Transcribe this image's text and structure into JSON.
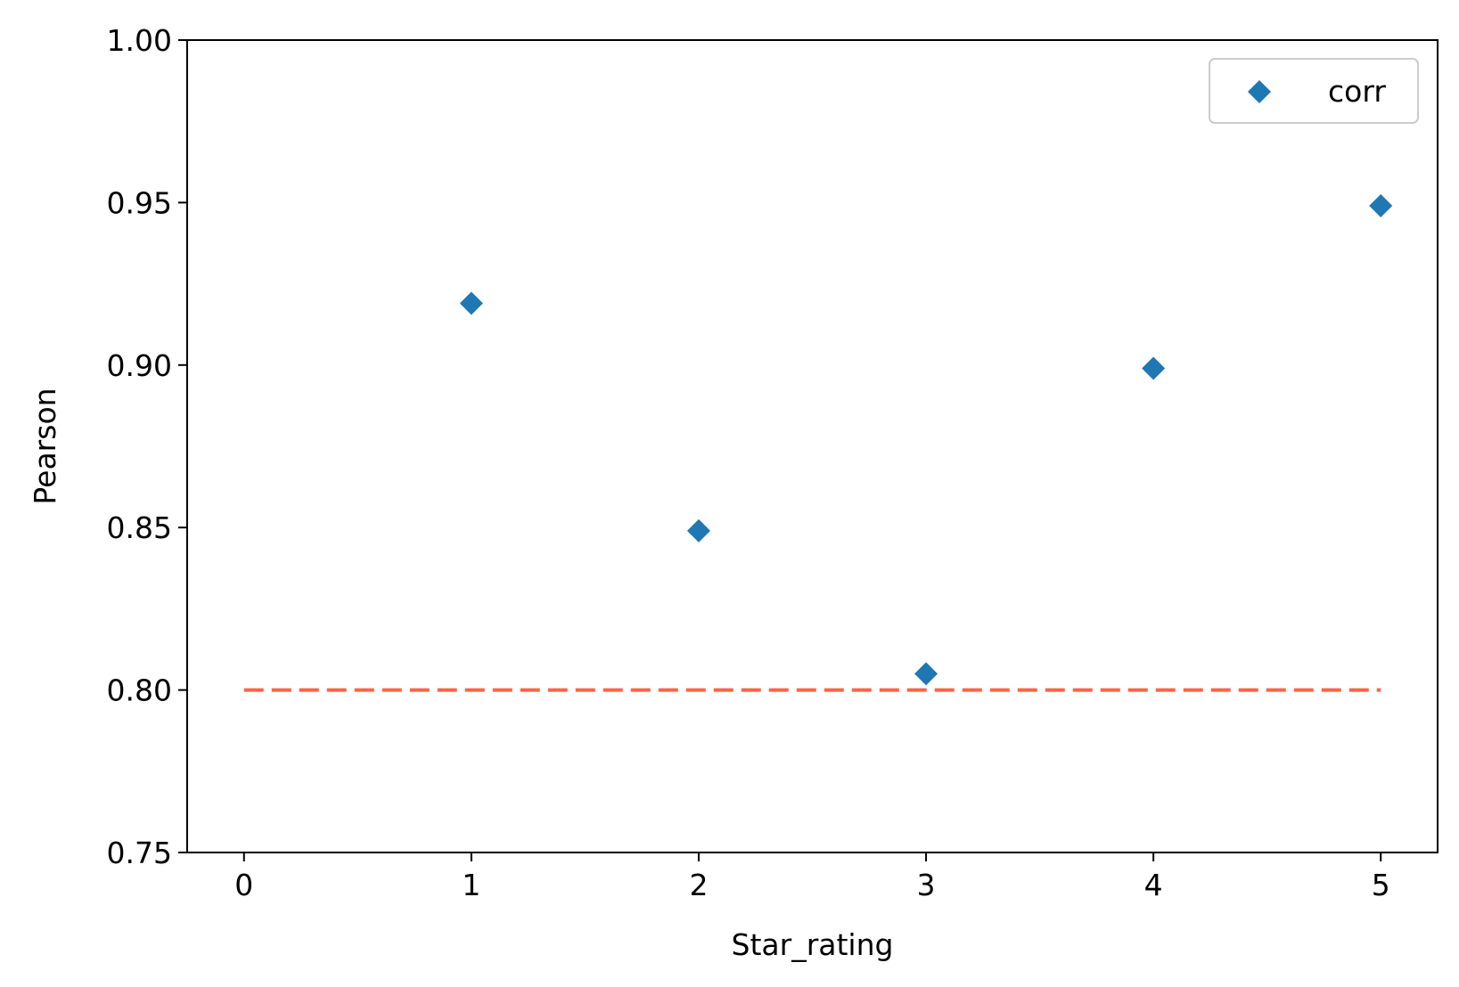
{
  "chart_data": {
    "type": "scatter",
    "title": "",
    "xlabel": "Star_rating",
    "ylabel": "Pearson",
    "xlim": [
      -0.25,
      5.25
    ],
    "ylim": [
      0.75,
      1.0
    ],
    "xticks": [
      0,
      1,
      2,
      3,
      4,
      5
    ],
    "xtick_labels": [
      "0",
      "1",
      "2",
      "3",
      "4",
      "5"
    ],
    "yticks": [
      0.75,
      0.8,
      0.85,
      0.9,
      0.95,
      1.0
    ],
    "ytick_labels": [
      "0.75",
      "0.80",
      "0.85",
      "0.90",
      "0.95",
      "1.00"
    ],
    "grid": false,
    "legend_position": "top-right",
    "series": [
      {
        "name": "corr",
        "marker": "diamond",
        "color": "#1f77b4",
        "points": [
          {
            "x": 1,
            "y": 0.919
          },
          {
            "x": 2,
            "y": 0.849
          },
          {
            "x": 3,
            "y": 0.805
          },
          {
            "x": 4,
            "y": 0.899
          },
          {
            "x": 5,
            "y": 0.949
          }
        ]
      }
    ],
    "reference_line": {
      "style": "dashed",
      "color": "#ff6347",
      "y": 0.8,
      "x_from": 0,
      "x_to": 5
    }
  }
}
